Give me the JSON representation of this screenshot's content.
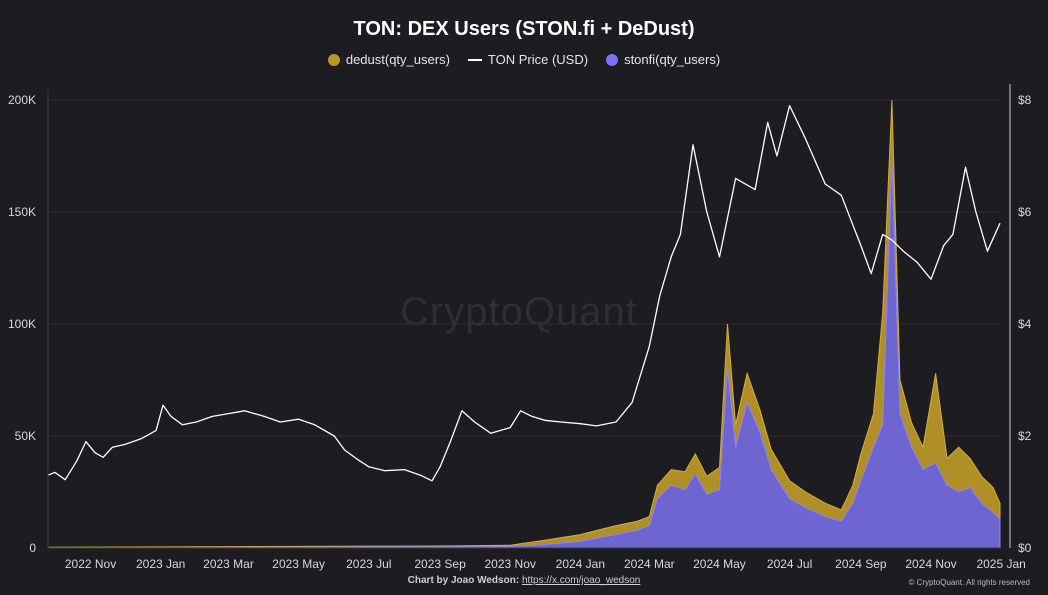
{
  "chart_data": {
    "type": "area",
    "title": "TON: DEX Users (STON.fi + DeDust)",
    "legend": [
      "dedust(qty_users)",
      "TON Price (USD)",
      "stonfi(qty_users)"
    ],
    "legend_placement": "top-center",
    "colors": {
      "dedust": "#b8962a",
      "price": "#ffffff",
      "stonfi": "#6c63d9",
      "background": "#1c1c21"
    },
    "x_ticks": [
      "2022 Nov",
      "2023 Jan",
      "2023 Mar",
      "2023 May",
      "2023 Jul",
      "2023 Sep",
      "2023 Nov",
      "2024 Jan",
      "2024 Mar",
      "2024 May",
      "2024 Jul",
      "2024 Sep",
      "2024 Nov",
      "2025 Jan"
    ],
    "y_left_ticks": [
      "0",
      "50K",
      "100K",
      "150K",
      "200K"
    ],
    "y_left_range": [
      0,
      200000
    ],
    "y_right_ticks": [
      "$0",
      "$2",
      "$4",
      "$6",
      "$8"
    ],
    "y_right_range": [
      0,
      8
    ],
    "grid": "horizontal",
    "x_range": [
      "2022-09-25",
      "2024-12-31"
    ],
    "series": [
      {
        "name": "TON Price (USD)",
        "axis": "right",
        "points": [
          [
            "2022-09-25",
            1.3
          ],
          [
            "2022-10-01",
            1.35
          ],
          [
            "2022-10-10",
            1.22
          ],
          [
            "2022-10-20",
            1.55
          ],
          [
            "2022-10-28",
            1.9
          ],
          [
            "2022-11-05",
            1.7
          ],
          [
            "2022-11-12",
            1.62
          ],
          [
            "2022-11-20",
            1.8
          ],
          [
            "2022-12-01",
            1.85
          ],
          [
            "2022-12-15",
            1.95
          ],
          [
            "2022-12-28",
            2.1
          ],
          [
            "2023-01-03",
            2.55
          ],
          [
            "2023-01-10",
            2.35
          ],
          [
            "2023-01-20",
            2.2
          ],
          [
            "2023-02-01",
            2.25
          ],
          [
            "2023-02-15",
            2.35
          ],
          [
            "2023-03-01",
            2.4
          ],
          [
            "2023-03-15",
            2.45
          ],
          [
            "2023-04-01",
            2.35
          ],
          [
            "2023-04-15",
            2.25
          ],
          [
            "2023-05-01",
            2.3
          ],
          [
            "2023-05-15",
            2.2
          ],
          [
            "2023-06-01",
            2.0
          ],
          [
            "2023-06-10",
            1.75
          ],
          [
            "2023-06-20",
            1.6
          ],
          [
            "2023-07-01",
            1.45
          ],
          [
            "2023-07-15",
            1.38
          ],
          [
            "2023-08-01",
            1.4
          ],
          [
            "2023-08-15",
            1.3
          ],
          [
            "2023-08-25",
            1.2
          ],
          [
            "2023-09-01",
            1.45
          ],
          [
            "2023-09-10",
            1.9
          ],
          [
            "2023-09-20",
            2.45
          ],
          [
            "2023-10-01",
            2.25
          ],
          [
            "2023-10-15",
            2.05
          ],
          [
            "2023-11-01",
            2.15
          ],
          [
            "2023-11-10",
            2.45
          ],
          [
            "2023-11-20",
            2.35
          ],
          [
            "2023-12-01",
            2.28
          ],
          [
            "2023-12-15",
            2.25
          ],
          [
            "2024-01-01",
            2.22
          ],
          [
            "2024-01-15",
            2.18
          ],
          [
            "2024-02-01",
            2.25
          ],
          [
            "2024-02-15",
            2.6
          ],
          [
            "2024-03-01",
            3.6
          ],
          [
            "2024-03-10",
            4.5
          ],
          [
            "2024-03-20",
            5.2
          ],
          [
            "2024-03-28",
            5.6
          ],
          [
            "2024-04-08",
            7.2
          ],
          [
            "2024-04-20",
            6.0
          ],
          [
            "2024-05-01",
            5.2
          ],
          [
            "2024-05-15",
            6.6
          ],
          [
            "2024-06-01",
            6.4
          ],
          [
            "2024-06-12",
            7.6
          ],
          [
            "2024-06-20",
            7.0
          ],
          [
            "2024-07-01",
            7.9
          ],
          [
            "2024-07-15",
            7.3
          ],
          [
            "2024-08-01",
            6.5
          ],
          [
            "2024-08-15",
            6.3
          ],
          [
            "2024-09-01",
            5.4
          ],
          [
            "2024-09-10",
            4.9
          ],
          [
            "2024-09-20",
            5.6
          ],
          [
            "2024-09-28",
            5.5
          ],
          [
            "2024-10-08",
            5.3
          ],
          [
            "2024-10-20",
            5.1
          ],
          [
            "2024-11-01",
            4.8
          ],
          [
            "2024-11-12",
            5.4
          ],
          [
            "2024-11-20",
            5.6
          ],
          [
            "2024-12-01",
            6.8
          ],
          [
            "2024-12-10",
            6.0
          ],
          [
            "2024-12-20",
            5.3
          ],
          [
            "2024-12-31",
            5.8
          ]
        ]
      },
      {
        "name": "stonfi(qty_users)",
        "axis": "left",
        "points": [
          [
            "2022-09-25",
            200
          ],
          [
            "2023-06-01",
            400
          ],
          [
            "2023-09-01",
            500
          ],
          [
            "2023-11-01",
            600
          ],
          [
            "2023-12-01",
            1500
          ],
          [
            "2024-01-01",
            3000
          ],
          [
            "2024-02-01",
            6000
          ],
          [
            "2024-02-20",
            8000
          ],
          [
            "2024-03-01",
            10000
          ],
          [
            "2024-03-08",
            22000
          ],
          [
            "2024-03-20",
            28000
          ],
          [
            "2024-04-01",
            26000
          ],
          [
            "2024-04-10",
            33000
          ],
          [
            "2024-04-20",
            24000
          ],
          [
            "2024-05-01",
            26000
          ],
          [
            "2024-05-08",
            80000
          ],
          [
            "2024-05-15",
            45000
          ],
          [
            "2024-05-25",
            65000
          ],
          [
            "2024-06-05",
            52000
          ],
          [
            "2024-06-15",
            35000
          ],
          [
            "2024-07-01",
            22000
          ],
          [
            "2024-07-15",
            18000
          ],
          [
            "2024-08-01",
            14000
          ],
          [
            "2024-08-15",
            12000
          ],
          [
            "2024-08-25",
            20000
          ],
          [
            "2024-09-01",
            30000
          ],
          [
            "2024-09-12",
            45000
          ],
          [
            "2024-09-20",
            55000
          ],
          [
            "2024-09-28",
            173000
          ],
          [
            "2024-10-05",
            60000
          ],
          [
            "2024-10-15",
            45000
          ],
          [
            "2024-10-25",
            35000
          ],
          [
            "2024-11-05",
            38000
          ],
          [
            "2024-11-15",
            28000
          ],
          [
            "2024-11-25",
            25000
          ],
          [
            "2024-12-05",
            27000
          ],
          [
            "2024-12-15",
            20000
          ],
          [
            "2024-12-25",
            16000
          ],
          [
            "2024-12-31",
            13000
          ]
        ]
      },
      {
        "name": "dedust(qty_users)",
        "axis": "left",
        "points": [
          [
            "2022-09-25",
            300
          ],
          [
            "2023-06-01",
            800
          ],
          [
            "2023-09-01",
            900
          ],
          [
            "2023-11-01",
            1200
          ],
          [
            "2023-12-01",
            3500
          ],
          [
            "2024-01-01",
            6000
          ],
          [
            "2024-02-01",
            10000
          ],
          [
            "2024-02-20",
            12000
          ],
          [
            "2024-03-01",
            14000
          ],
          [
            "2024-03-08",
            28000
          ],
          [
            "2024-03-20",
            35000
          ],
          [
            "2024-04-01",
            34000
          ],
          [
            "2024-04-10",
            42000
          ],
          [
            "2024-04-20",
            32000
          ],
          [
            "2024-05-01",
            36000
          ],
          [
            "2024-05-08",
            100000
          ],
          [
            "2024-05-15",
            55000
          ],
          [
            "2024-05-25",
            78000
          ],
          [
            "2024-06-05",
            62000
          ],
          [
            "2024-06-15",
            44000
          ],
          [
            "2024-07-01",
            30000
          ],
          [
            "2024-07-15",
            25000
          ],
          [
            "2024-08-01",
            20000
          ],
          [
            "2024-08-15",
            17000
          ],
          [
            "2024-08-25",
            28000
          ],
          [
            "2024-09-01",
            42000
          ],
          [
            "2024-09-12",
            60000
          ],
          [
            "2024-09-20",
            105000
          ],
          [
            "2024-09-28",
            200000
          ],
          [
            "2024-10-05",
            75000
          ],
          [
            "2024-10-15",
            56000
          ],
          [
            "2024-10-25",
            45000
          ],
          [
            "2024-11-05",
            78000
          ],
          [
            "2024-11-15",
            40000
          ],
          [
            "2024-11-25",
            45000
          ],
          [
            "2024-12-05",
            40000
          ],
          [
            "2024-12-15",
            32000
          ],
          [
            "2024-12-25",
            27000
          ],
          [
            "2024-12-31",
            20000
          ]
        ]
      }
    ]
  },
  "credit": {
    "prefix": "Chart by Joao Wedson: ",
    "link": "https://x.com/joao_wedson"
  },
  "copyright": "© CryptoQuant. All rights reserved",
  "watermark": "CryptoQuant"
}
